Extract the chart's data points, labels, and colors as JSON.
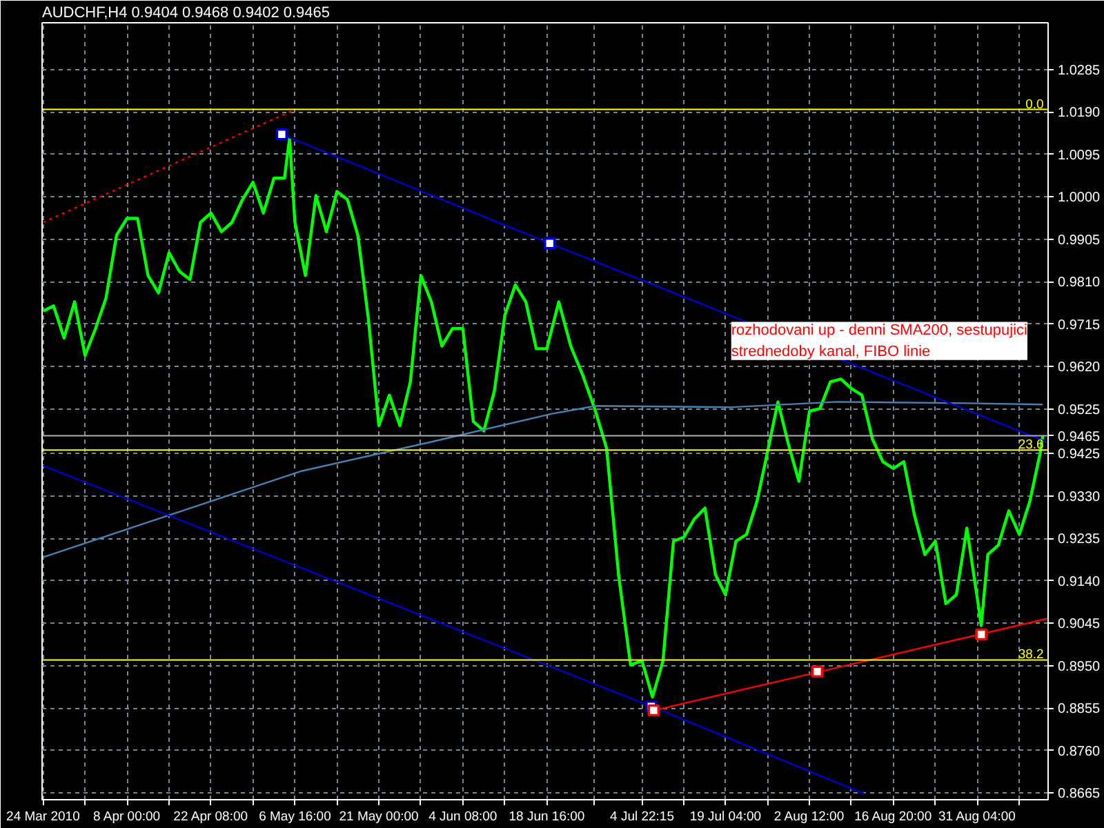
{
  "chart_data": {
    "type": "line",
    "title": "AUDCHF,H4 0.9404 0.9468 0.9402 0.9465",
    "annotations": [
      "rozhodovani up - denni SMA200, sestupujici strednedoby kanal, FIBO linie",
      {
        "text": "0.0",
        "x": "2010-09-11T12:00",
        "y": 1.0196
      },
      {
        "text": "23.6",
        "x": "2010-09-11T12:00",
        "y": 0.9433
      },
      {
        "text": "38.2",
        "x": "2010-09-11T12:00",
        "y": 0.8963
      }
    ],
    "xlim": [
      "2010-03-24T12:00",
      "2010-09-12T06:00"
    ],
    "ylim": [
      0.865,
      1.039
    ],
    "xticks": [
      {
        "value": "2010-03-24T16:00",
        "label": "24 Mar 2010"
      },
      {
        "value": "2010-03-31T20:00",
        "label": null
      },
      {
        "value": "2010-04-08T00:00",
        "label": "8 Apr 00:00"
      },
      {
        "value": "2010-04-15T04:00",
        "label": null
      },
      {
        "value": "2010-04-22T08:00",
        "label": "22 Apr 08:00"
      },
      {
        "value": "2010-04-29T12:00",
        "label": null
      },
      {
        "value": "2010-05-06T16:00",
        "label": "6 May 16:00"
      },
      {
        "value": "2010-05-13T20:00",
        "label": null
      },
      {
        "value": "2010-05-21T00:00",
        "label": "21 May 00:00"
      },
      {
        "value": "2010-05-28T04:00",
        "label": null
      },
      {
        "value": "2010-06-04T08:00",
        "label": "4 Jun 08:00"
      },
      {
        "value": "2010-06-11T12:00",
        "label": null
      },
      {
        "value": "2010-06-18T16:00",
        "label": "18 Jun 16:00"
      },
      {
        "value": "2010-06-26T19:00",
        "label": null
      },
      {
        "value": "2010-07-04T22:15",
        "label": "4 Jul 22:15"
      },
      {
        "value": "2010-07-12T01:00",
        "label": null
      },
      {
        "value": "2010-07-19T04:00",
        "label": "19 Jul 04:00"
      },
      {
        "value": "2010-07-26T08:00",
        "label": null
      },
      {
        "value": "2010-08-02T12:00",
        "label": "2 Aug 12:00"
      },
      {
        "value": "2010-08-09T16:00",
        "label": null
      },
      {
        "value": "2010-08-16T20:00",
        "label": "16 Aug 20:00"
      },
      {
        "value": "2010-08-24T00:00",
        "label": null
      },
      {
        "value": "2010-08-31T04:00",
        "label": "31 Aug 04:00"
      },
      {
        "value": "2010-09-07T08:00",
        "label": null
      }
    ],
    "yticks": [
      1.0285,
      {
        "value": 1.019,
        "label": "1.0190"
      },
      1.0095,
      {
        "value": 1.0,
        "label": "1.0000"
      },
      0.9905,
      {
        "value": 0.981,
        "label": "0.9810"
      },
      0.9715,
      {
        "value": 0.962,
        "label": "0.9620"
      },
      0.9525,
      0.9425,
      {
        "value": 0.933,
        "label": "0.9330"
      },
      0.9235,
      {
        "value": 0.914,
        "label": "0.9140"
      },
      0.9045,
      {
        "value": 0.895,
        "label": "0.8950"
      },
      0.8855,
      {
        "value": 0.876,
        "label": "0.8760"
      },
      0.8665
    ],
    "grid": true,
    "ref_lines": [
      {
        "axis": "y",
        "value": 1.0196,
        "color": "#ffff00"
      },
      {
        "axis": "y",
        "value": 0.9433,
        "color": "#ffff00"
      },
      {
        "axis": "y",
        "value": 0.8963,
        "color": "#ffff00"
      },
      {
        "axis": "y",
        "value": 0.9465,
        "label": "0.9465",
        "color": "#b0b0b0"
      }
    ],
    "series": [
      {
        "color": "#00ff00",
        "x": [
          "2010-03-24T16:00",
          "2010-03-26T11:00",
          "2010-03-28T06:00",
          "2010-03-30T01:00",
          "2010-03-31T20:00",
          "2010-04-02T15:00",
          "2010-04-04T10:00",
          "2010-04-06T05:00",
          "2010-04-08T00:00",
          "2010-04-09T19:00",
          "2010-04-11T14:00",
          "2010-04-13T09:00",
          "2010-04-15T04:00",
          "2010-04-16T23:00",
          "2010-04-18T18:00",
          "2010-04-20T13:00",
          "2010-04-22T08:00",
          "2010-04-24T03:00",
          "2010-04-25T22:00",
          "2010-04-27T17:00",
          "2010-04-29T12:00",
          "2010-05-01T07:00",
          "2010-05-03T02:00",
          "2010-05-04T21:00",
          "2010-05-05T18:00",
          "2010-05-06T16:00",
          "2010-05-08T11:00",
          "2010-05-10T06:00",
          "2010-05-12T01:00",
          "2010-05-13T20:00",
          "2010-05-15T15:00",
          "2010-05-17T10:00",
          "2010-05-19T05:00",
          "2010-05-21T00:00",
          "2010-05-22T19:00",
          "2010-05-24T14:00",
          "2010-05-26T09:00",
          "2010-05-28T04:00",
          "2010-05-29T23:00",
          "2010-05-31T18:00",
          "2010-06-02T13:00",
          "2010-06-04T08:00",
          "2010-06-06T03:00",
          "2010-06-07T22:00",
          "2010-06-09T17:00",
          "2010-06-11T12:00",
          "2010-06-13T07:00",
          "2010-06-15T02:00",
          "2010-06-16T21:00",
          "2010-06-18T16:00",
          "2010-06-20T17:00",
          "2010-06-22T18:00",
          "2010-06-24T19:00",
          "2010-06-26T20:00",
          "2010-06-28T21:00",
          "2010-06-30T22:00",
          "2010-07-02T23:00",
          "2010-07-04T22:00",
          "2010-07-06T17:00",
          "2010-07-08T12:00",
          "2010-07-10T07:00",
          "2010-07-12T02:00",
          "2010-07-13T21:00",
          "2010-07-15T16:00",
          "2010-07-17T11:00",
          "2010-07-19T04:00",
          "2010-07-20T23:00",
          "2010-07-22T18:00",
          "2010-07-24T13:00",
          "2010-07-26T08:00",
          "2010-07-28T03:00",
          "2010-07-29T22:00",
          "2010-07-31T17:00",
          "2010-08-02T12:00",
          "2010-08-04T07:00",
          "2010-08-06T02:00",
          "2010-08-07T21:00",
          "2010-08-09T16:00",
          "2010-08-11T11:00",
          "2010-08-13T06:00",
          "2010-08-15T01:00",
          "2010-08-16T20:00",
          "2010-08-18T15:00",
          "2010-08-20T10:00",
          "2010-08-22T05:00",
          "2010-08-24T00:00",
          "2010-08-25T19:00",
          "2010-08-27T14:00",
          "2010-08-29T09:00",
          "2010-08-31T04:00",
          "2010-08-31T20:00",
          "2010-09-01T23:00",
          "2010-09-03T18:00",
          "2010-09-05T13:00",
          "2010-09-07T08:00",
          "2010-09-09T03:00",
          "2010-09-10T22:00",
          "2010-09-11T08:00"
        ],
        "values": [
          0.9744,
          0.9756,
          0.9684,
          0.9765,
          0.9645,
          0.9705,
          0.9774,
          0.9914,
          0.9952,
          0.9952,
          0.9824,
          0.9785,
          0.9875,
          0.9833,
          0.9815,
          0.9943,
          0.9964,
          0.9922,
          0.9943,
          0.9994,
          1.0033,
          0.9964,
          1.0042,
          1.0042,
          1.0131,
          0.9943,
          0.9824,
          1.0003,
          0.9922,
          1.0012,
          0.9994,
          0.9914,
          0.9726,
          0.9488,
          0.9556,
          0.9488,
          0.9586,
          0.9824,
          0.9765,
          0.9666,
          0.9705,
          0.9705,
          0.9497,
          0.9476,
          0.9565,
          0.9735,
          0.9803,
          0.9765,
          0.966,
          0.966,
          0.9765,
          0.9666,
          0.9601,
          0.9526,
          0.9437,
          0.9154,
          0.8952,
          0.8961,
          0.888,
          0.8961,
          0.9229,
          0.9238,
          0.9279,
          0.9303,
          0.9154,
          0.9109,
          0.9229,
          0.9244,
          0.9318,
          0.9428,
          0.9541,
          0.9446,
          0.9363,
          0.952,
          0.9526,
          0.9586,
          0.9592,
          0.9571,
          0.9556,
          0.9458,
          0.9407,
          0.9392,
          0.9407,
          0.9288,
          0.9199,
          0.9229,
          0.9089,
          0.9109,
          0.9258,
          0.9101,
          0.904,
          0.9199,
          0.922,
          0.9297,
          0.9244,
          0.9318,
          0.9428,
          0.9465
        ]
      },
      {
        "color": "#4682b4",
        "x": [
          "2010-03-24T16:00",
          "2010-04-15T09:00",
          "2010-05-07T19:00",
          "2010-05-30T04:00",
          "2010-06-19T10:00",
          "2010-06-27T01:00",
          "2010-07-20T07:00",
          "2010-08-07T05:00",
          "2010-08-29T14:00",
          "2010-09-11T08:00"
        ],
        "values": [
          0.9193,
          0.9288,
          0.9386,
          0.9452,
          0.9514,
          0.9532,
          0.9529,
          0.9541,
          0.9538,
          0.9535
        ]
      },
      {
        "color": "#0000cd",
        "x": [
          "2010-05-04T10:00",
          "2010-06-19T04:00",
          "2010-09-12T06:00"
        ],
        "values": [
          1.014,
          0.9896,
          0.945
        ]
      },
      {
        "color": "#0000cd",
        "x": [
          "2010-03-24T16:00",
          "2010-07-06T12:00",
          "2010-08-11T22:00"
        ],
        "values": [
          0.9398,
          0.8859,
          0.8663
        ]
      },
      {
        "color": "#ff0000",
        "x": [
          "2010-07-06T22:00",
          "2010-09-12T06:00"
        ],
        "values": [
          0.885,
          0.9056
        ]
      },
      {
        "color": "#ff0000",
        "line_style": "dotted",
        "x": [
          "2010-03-24T16:00",
          "2010-05-06T05:00"
        ],
        "values": [
          0.9943,
          1.0193
        ]
      },
      {
        "type": "scatter",
        "color": "#0000cd",
        "marker": "square",
        "x": [
          "2010-05-04T10:00",
          "2010-06-19T04:00",
          "2010-07-06T12:00"
        ],
        "values": [
          1.014,
          0.9896,
          0.8859
        ]
      },
      {
        "type": "scatter",
        "color": "#ff0000",
        "marker": "square",
        "x": [
          "2010-07-06T22:00",
          "2010-08-03T20:00",
          "2010-08-31T20:00"
        ],
        "values": [
          0.885,
          0.8937,
          0.902
        ]
      }
    ]
  }
}
